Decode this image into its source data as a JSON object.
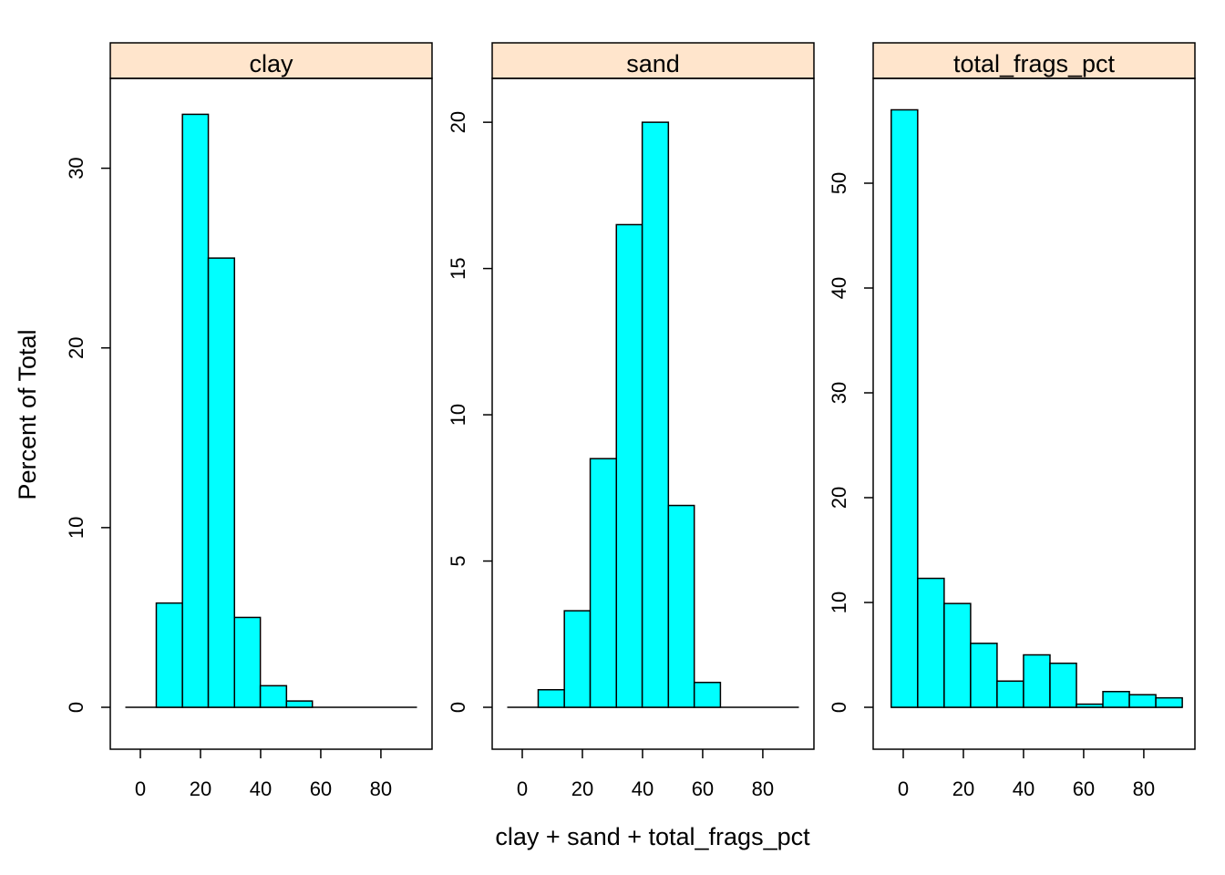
{
  "chart_data": {
    "type": "bar",
    "xlabel": "clay + sand + total_frags_pct",
    "ylabel": "Percent of Total",
    "colors": {
      "bar_fill": "#00ffff",
      "strip_fill": "#ffe5cc",
      "stroke": "#000000"
    },
    "panels": [
      {
        "name": "clay",
        "xlim": [
          -10,
          97
        ],
        "ylim": [
          0,
          35
        ],
        "xticks": [
          0,
          20,
          40,
          60,
          80
        ],
        "yticks": [
          0,
          10,
          20,
          30
        ],
        "bins": [
          {
            "x0": 5.3,
            "x1": 14.0,
            "value": 5.8
          },
          {
            "x0": 14.0,
            "x1": 22.6,
            "value": 33.0
          },
          {
            "x0": 22.6,
            "x1": 31.3,
            "value": 25.0
          },
          {
            "x0": 31.3,
            "x1": 39.9,
            "value": 5.0
          },
          {
            "x0": 39.9,
            "x1": 48.6,
            "value": 1.2
          },
          {
            "x0": 48.6,
            "x1": 57.2,
            "value": 0.35
          },
          {
            "x0": 57.2,
            "x1": 65.9,
            "value": 0
          },
          {
            "x0": 65.9,
            "x1": 74.5,
            "value": 0
          },
          {
            "x0": 74.5,
            "x1": 83.2,
            "value": 0
          },
          {
            "x0": 83.2,
            "x1": 91.8,
            "value": 0
          }
        ],
        "baseline": [
          -5,
          92
        ]
      },
      {
        "name": "sand",
        "xlim": [
          -10,
          97
        ],
        "ylim": [
          0,
          21.5
        ],
        "xticks": [
          0,
          20,
          40,
          60,
          80
        ],
        "yticks": [
          0,
          5,
          10,
          15,
          20
        ],
        "bins": [
          {
            "x0": 5.3,
            "x1": 14.0,
            "value": 0.6
          },
          {
            "x0": 14.0,
            "x1": 22.6,
            "value": 3.3
          },
          {
            "x0": 22.6,
            "x1": 31.3,
            "value": 8.5
          },
          {
            "x0": 31.3,
            "x1": 39.9,
            "value": 16.5
          },
          {
            "x0": 39.9,
            "x1": 48.6,
            "value": 20.0
          },
          {
            "x0": 48.6,
            "x1": 57.2,
            "value": 6.9
          },
          {
            "x0": 57.2,
            "x1": 65.9,
            "value": 0.85
          },
          {
            "x0": 65.9,
            "x1": 74.5,
            "value": 0
          },
          {
            "x0": 74.5,
            "x1": 83.2,
            "value": 0
          },
          {
            "x0": 83.2,
            "x1": 91.8,
            "value": 0
          }
        ],
        "baseline": [
          -5,
          92
        ]
      },
      {
        "name": "total_frags_pct",
        "xlim": [
          -10,
          97
        ],
        "ylim": [
          0,
          60
        ],
        "xticks": [
          0,
          20,
          40,
          60,
          80
        ],
        "yticks": [
          0,
          10,
          20,
          30,
          40,
          50
        ],
        "bins": [
          {
            "x0": -4.0,
            "x1": 4.8,
            "value": 57.0
          },
          {
            "x0": 4.8,
            "x1": 13.6,
            "value": 12.3
          },
          {
            "x0": 13.6,
            "x1": 22.4,
            "value": 9.9
          },
          {
            "x0": 22.4,
            "x1": 31.2,
            "value": 6.1
          },
          {
            "x0": 31.2,
            "x1": 40.0,
            "value": 2.5
          },
          {
            "x0": 40.0,
            "x1": 48.8,
            "value": 5.0
          },
          {
            "x0": 48.8,
            "x1": 57.6,
            "value": 4.2
          },
          {
            "x0": 57.6,
            "x1": 66.4,
            "value": 0.3
          },
          {
            "x0": 66.4,
            "x1": 75.2,
            "value": 1.5
          },
          {
            "x0": 75.2,
            "x1": 84.0,
            "value": 1.2
          },
          {
            "x0": 84.0,
            "x1": 92.8,
            "value": 0.9
          }
        ],
        "baseline": [
          -4,
          92.8
        ]
      }
    ]
  }
}
